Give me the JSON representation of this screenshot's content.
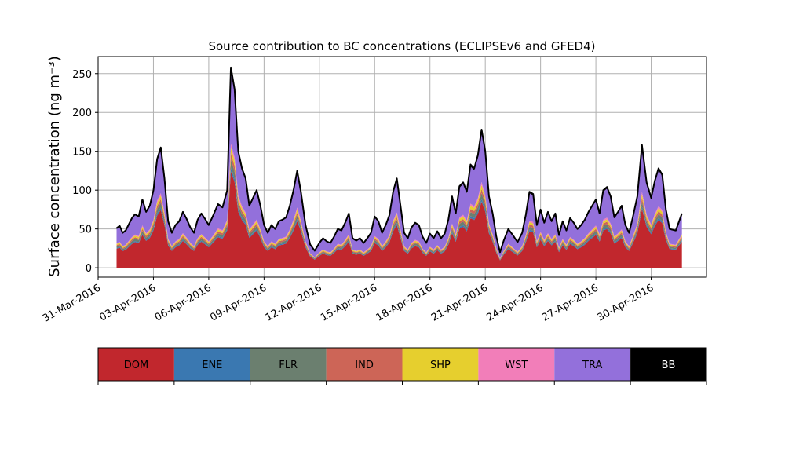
{
  "chart_data": {
    "type": "area",
    "stacked": true,
    "title": "Source contribution to BC concentrations (ECLIPSEv6 and GFED4)",
    "ylabel": "Surface concentration (ng m⁻³)",
    "xlabel": "",
    "x_start": "2016-04-01",
    "x_end": "2016-05-02",
    "xlim": [
      "2016-03-31",
      "2016-05-03"
    ],
    "ylim": [
      -12,
      272
    ],
    "grid": true,
    "yticks": [
      0,
      50,
      100,
      150,
      200,
      250
    ],
    "xtick_dates": [
      "2016-03-31",
      "2016-04-03",
      "2016-04-06",
      "2016-04-09",
      "2016-04-12",
      "2016-04-15",
      "2016-04-18",
      "2016-04-21",
      "2016-04-24",
      "2016-04-27",
      "2016-04-30"
    ],
    "xtick_labels": [
      "31-Mar-2016",
      "03-Apr-2016",
      "06-Apr-2016",
      "09-Apr-2016",
      "12-Apr-2016",
      "15-Apr-2016",
      "18-Apr-2016",
      "21-Apr-2016",
      "24-Apr-2016",
      "27-Apr-2016",
      "30-Apr-2016"
    ],
    "total_profile": [
      [
        "2016-04-01",
        51
      ],
      [
        "2016-04-01",
        54
      ],
      [
        "2016-04-01",
        45
      ],
      [
        "2016-04-01",
        48
      ],
      [
        "2016-04-01",
        56
      ],
      [
        "2016-04-01",
        64
      ],
      [
        "2016-04-02",
        69
      ],
      [
        "2016-04-02",
        66
      ],
      [
        "2016-04-02",
        88
      ],
      [
        "2016-04-02",
        72
      ],
      [
        "2016-04-02",
        80
      ],
      [
        "2016-04-03",
        100
      ],
      [
        "2016-04-03",
        140
      ],
      [
        "2016-04-03",
        155
      ],
      [
        "2016-04-03",
        115
      ],
      [
        "2016-04-03",
        60
      ],
      [
        "2016-04-04",
        45
      ],
      [
        "2016-04-04",
        55
      ],
      [
        "2016-04-04",
        60
      ],
      [
        "2016-04-04",
        72
      ],
      [
        "2016-04-04",
        63
      ],
      [
        "2016-04-05",
        52
      ],
      [
        "2016-04-05",
        45
      ],
      [
        "2016-04-05",
        62
      ],
      [
        "2016-04-05",
        70
      ],
      [
        "2016-04-05",
        63
      ],
      [
        "2016-04-06",
        55
      ],
      [
        "2016-04-06",
        68
      ],
      [
        "2016-04-06",
        82
      ],
      [
        "2016-04-06",
        78
      ],
      [
        "2016-04-07",
        100
      ],
      [
        "2016-04-07",
        258
      ],
      [
        "2016-04-07",
        230
      ],
      [
        "2016-04-07",
        150
      ],
      [
        "2016-04-07",
        128
      ],
      [
        "2016-04-08",
        115
      ],
      [
        "2016-04-08",
        80
      ],
      [
        "2016-04-08",
        90
      ],
      [
        "2016-04-08",
        100
      ],
      [
        "2016-04-08",
        80
      ],
      [
        "2016-04-09",
        55
      ],
      [
        "2016-04-09",
        45
      ],
      [
        "2016-04-09",
        55
      ],
      [
        "2016-04-09",
        50
      ],
      [
        "2016-04-09",
        60
      ],
      [
        "2016-04-10",
        62
      ],
      [
        "2016-04-10",
        65
      ],
      [
        "2016-04-10",
        80
      ],
      [
        "2016-04-10",
        100
      ],
      [
        "2016-04-10",
        125
      ],
      [
        "2016-04-11",
        98
      ],
      [
        "2016-04-11",
        55
      ],
      [
        "2016-04-11",
        30
      ],
      [
        "2016-04-11",
        22
      ],
      [
        "2016-04-12",
        32
      ],
      [
        "2016-04-12",
        38
      ],
      [
        "2016-04-12",
        34
      ],
      [
        "2016-04-12",
        32
      ],
      [
        "2016-04-12",
        40
      ],
      [
        "2016-04-13",
        50
      ],
      [
        "2016-04-13",
        48
      ],
      [
        "2016-04-13",
        58
      ],
      [
        "2016-04-13",
        70
      ],
      [
        "2016-04-13",
        38
      ],
      [
        "2016-04-14",
        35
      ],
      [
        "2016-04-14",
        38
      ],
      [
        "2016-04-14",
        32
      ],
      [
        "2016-04-14",
        38
      ],
      [
        "2016-04-14",
        45
      ],
      [
        "2016-04-15",
        66
      ],
      [
        "2016-04-15",
        60
      ],
      [
        "2016-04-15",
        45
      ],
      [
        "2016-04-15",
        55
      ],
      [
        "2016-04-15",
        68
      ],
      [
        "2016-04-16",
        98
      ],
      [
        "2016-04-16",
        115
      ],
      [
        "2016-04-16",
        80
      ],
      [
        "2016-04-16",
        45
      ],
      [
        "2016-04-16",
        38
      ],
      [
        "2016-04-17",
        52
      ],
      [
        "2016-04-17",
        58
      ],
      [
        "2016-04-17",
        55
      ],
      [
        "2016-04-17",
        40
      ],
      [
        "2016-04-17",
        32
      ],
      [
        "2016-04-18",
        44
      ],
      [
        "2016-04-18",
        38
      ],
      [
        "2016-04-18",
        47
      ],
      [
        "2016-04-18",
        38
      ],
      [
        "2016-04-18",
        44
      ],
      [
        "2016-04-19",
        62
      ],
      [
        "2016-04-19",
        92
      ],
      [
        "2016-04-19",
        70
      ],
      [
        "2016-04-19",
        105
      ],
      [
        "2016-04-19",
        110
      ],
      [
        "2016-04-20",
        98
      ],
      [
        "2016-04-20",
        133
      ],
      [
        "2016-04-20",
        128
      ],
      [
        "2016-04-20",
        145
      ],
      [
        "2016-04-20",
        178
      ],
      [
        "2016-04-21",
        150
      ],
      [
        "2016-04-21",
        92
      ],
      [
        "2016-04-21",
        70
      ],
      [
        "2016-04-21",
        40
      ],
      [
        "2016-04-21",
        20
      ],
      [
        "2016-04-22",
        35
      ],
      [
        "2016-04-22",
        50
      ],
      [
        "2016-04-22",
        42
      ],
      [
        "2016-04-22",
        33
      ],
      [
        "2016-04-23",
        45
      ],
      [
        "2016-04-23",
        68
      ],
      [
        "2016-04-23",
        98
      ],
      [
        "2016-04-23",
        95
      ],
      [
        "2016-04-23",
        55
      ],
      [
        "2016-04-24",
        75
      ],
      [
        "2016-04-24",
        58
      ],
      [
        "2016-04-24",
        72
      ],
      [
        "2016-04-24",
        60
      ],
      [
        "2016-04-24",
        70
      ],
      [
        "2016-04-25",
        42
      ],
      [
        "2016-04-25",
        60
      ],
      [
        "2016-04-25",
        48
      ],
      [
        "2016-04-25",
        64
      ],
      [
        "2016-04-25",
        58
      ],
      [
        "2016-04-26",
        50
      ],
      [
        "2016-04-26",
        55
      ],
      [
        "2016-04-26",
        62
      ],
      [
        "2016-04-26",
        72
      ],
      [
        "2016-04-26",
        80
      ],
      [
        "2016-04-27",
        88
      ],
      [
        "2016-04-27",
        70
      ],
      [
        "2016-04-27",
        100
      ],
      [
        "2016-04-27",
        104
      ],
      [
        "2016-04-27",
        92
      ],
      [
        "2016-04-28",
        65
      ],
      [
        "2016-04-28",
        72
      ],
      [
        "2016-04-28",
        80
      ],
      [
        "2016-04-28",
        55
      ],
      [
        "2016-04-28",
        45
      ],
      [
        "2016-04-29",
        65
      ],
      [
        "2016-04-29",
        92
      ],
      [
        "2016-04-29",
        158
      ],
      [
        "2016-04-29",
        110
      ],
      [
        "2016-04-30",
        90
      ],
      [
        "2016-04-30",
        112
      ],
      [
        "2016-04-30",
        128
      ],
      [
        "2016-04-30",
        120
      ],
      [
        "2016-04-30",
        75
      ],
      [
        "2016-05-01",
        50
      ],
      [
        "2016-05-01",
        48
      ],
      [
        "2016-05-01",
        70
      ]
    ],
    "stack_share_of_total": {
      "DOM": 0.48,
      "ENE": 0.02,
      "FLR": 0.04,
      "IND": 0.03,
      "SHP": 0.03,
      "WST": 0.02,
      "TRA": 0.36,
      "BB": 0.02
    },
    "series": [
      {
        "name": "DOM",
        "color": "#c1272d"
      },
      {
        "name": "ENE",
        "color": "#3a78b1"
      },
      {
        "name": "FLR",
        "color": "#6b7f6f"
      },
      {
        "name": "IND",
        "color": "#cd6557"
      },
      {
        "name": "SHP",
        "color": "#e6cf2e"
      },
      {
        "name": "WST",
        "color": "#f27eb9"
      },
      {
        "name": "TRA",
        "color": "#9370db"
      },
      {
        "name": "BB",
        "color": "#000000"
      }
    ],
    "legend": {
      "placement": "bottom-colorbar",
      "labels": [
        "DOM",
        "ENE",
        "FLR",
        "IND",
        "SHP",
        "WST",
        "TRA",
        "BB"
      ]
    }
  },
  "colors": {
    "grid": "#b0b0b0",
    "axis": "#000000",
    "total_line": "#000000"
  }
}
